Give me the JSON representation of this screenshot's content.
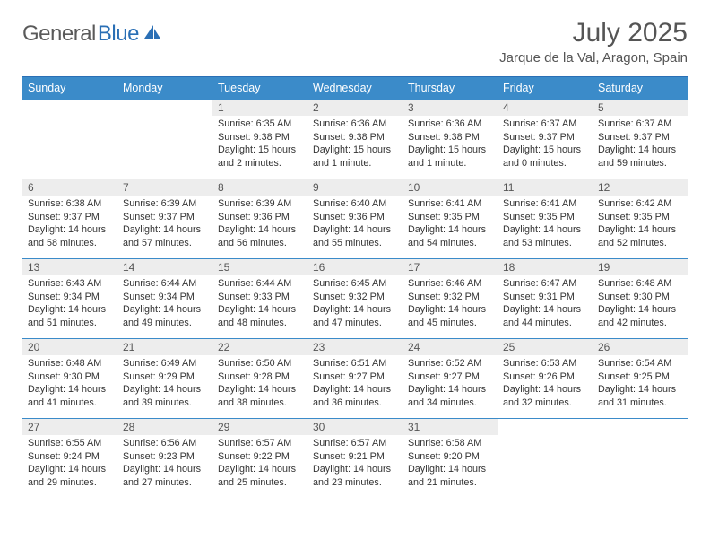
{
  "brand": {
    "part1": "General",
    "part2": "Blue"
  },
  "title": "July 2025",
  "location": "Jarque de la Val, Aragon, Spain",
  "weekdays": [
    "Sunday",
    "Monday",
    "Tuesday",
    "Wednesday",
    "Thursday",
    "Friday",
    "Saturday"
  ],
  "colors": {
    "header_bg": "#3b8bc9",
    "header_text": "#ffffff",
    "border": "#3b8bc9",
    "daynum_bg": "#ededed",
    "brand_gray": "#5a5a5a",
    "brand_blue": "#2a6fb5"
  },
  "weeks": [
    [
      null,
      null,
      {
        "n": "1",
        "sr": "Sunrise: 6:35 AM",
        "ss": "Sunset: 9:38 PM",
        "dl": "Daylight: 15 hours and 2 minutes."
      },
      {
        "n": "2",
        "sr": "Sunrise: 6:36 AM",
        "ss": "Sunset: 9:38 PM",
        "dl": "Daylight: 15 hours and 1 minute."
      },
      {
        "n": "3",
        "sr": "Sunrise: 6:36 AM",
        "ss": "Sunset: 9:38 PM",
        "dl": "Daylight: 15 hours and 1 minute."
      },
      {
        "n": "4",
        "sr": "Sunrise: 6:37 AM",
        "ss": "Sunset: 9:37 PM",
        "dl": "Daylight: 15 hours and 0 minutes."
      },
      {
        "n": "5",
        "sr": "Sunrise: 6:37 AM",
        "ss": "Sunset: 9:37 PM",
        "dl": "Daylight: 14 hours and 59 minutes."
      }
    ],
    [
      {
        "n": "6",
        "sr": "Sunrise: 6:38 AM",
        "ss": "Sunset: 9:37 PM",
        "dl": "Daylight: 14 hours and 58 minutes."
      },
      {
        "n": "7",
        "sr": "Sunrise: 6:39 AM",
        "ss": "Sunset: 9:37 PM",
        "dl": "Daylight: 14 hours and 57 minutes."
      },
      {
        "n": "8",
        "sr": "Sunrise: 6:39 AM",
        "ss": "Sunset: 9:36 PM",
        "dl": "Daylight: 14 hours and 56 minutes."
      },
      {
        "n": "9",
        "sr": "Sunrise: 6:40 AM",
        "ss": "Sunset: 9:36 PM",
        "dl": "Daylight: 14 hours and 55 minutes."
      },
      {
        "n": "10",
        "sr": "Sunrise: 6:41 AM",
        "ss": "Sunset: 9:35 PM",
        "dl": "Daylight: 14 hours and 54 minutes."
      },
      {
        "n": "11",
        "sr": "Sunrise: 6:41 AM",
        "ss": "Sunset: 9:35 PM",
        "dl": "Daylight: 14 hours and 53 minutes."
      },
      {
        "n": "12",
        "sr": "Sunrise: 6:42 AM",
        "ss": "Sunset: 9:35 PM",
        "dl": "Daylight: 14 hours and 52 minutes."
      }
    ],
    [
      {
        "n": "13",
        "sr": "Sunrise: 6:43 AM",
        "ss": "Sunset: 9:34 PM",
        "dl": "Daylight: 14 hours and 51 minutes."
      },
      {
        "n": "14",
        "sr": "Sunrise: 6:44 AM",
        "ss": "Sunset: 9:34 PM",
        "dl": "Daylight: 14 hours and 49 minutes."
      },
      {
        "n": "15",
        "sr": "Sunrise: 6:44 AM",
        "ss": "Sunset: 9:33 PM",
        "dl": "Daylight: 14 hours and 48 minutes."
      },
      {
        "n": "16",
        "sr": "Sunrise: 6:45 AM",
        "ss": "Sunset: 9:32 PM",
        "dl": "Daylight: 14 hours and 47 minutes."
      },
      {
        "n": "17",
        "sr": "Sunrise: 6:46 AM",
        "ss": "Sunset: 9:32 PM",
        "dl": "Daylight: 14 hours and 45 minutes."
      },
      {
        "n": "18",
        "sr": "Sunrise: 6:47 AM",
        "ss": "Sunset: 9:31 PM",
        "dl": "Daylight: 14 hours and 44 minutes."
      },
      {
        "n": "19",
        "sr": "Sunrise: 6:48 AM",
        "ss": "Sunset: 9:30 PM",
        "dl": "Daylight: 14 hours and 42 minutes."
      }
    ],
    [
      {
        "n": "20",
        "sr": "Sunrise: 6:48 AM",
        "ss": "Sunset: 9:30 PM",
        "dl": "Daylight: 14 hours and 41 minutes."
      },
      {
        "n": "21",
        "sr": "Sunrise: 6:49 AM",
        "ss": "Sunset: 9:29 PM",
        "dl": "Daylight: 14 hours and 39 minutes."
      },
      {
        "n": "22",
        "sr": "Sunrise: 6:50 AM",
        "ss": "Sunset: 9:28 PM",
        "dl": "Daylight: 14 hours and 38 minutes."
      },
      {
        "n": "23",
        "sr": "Sunrise: 6:51 AM",
        "ss": "Sunset: 9:27 PM",
        "dl": "Daylight: 14 hours and 36 minutes."
      },
      {
        "n": "24",
        "sr": "Sunrise: 6:52 AM",
        "ss": "Sunset: 9:27 PM",
        "dl": "Daylight: 14 hours and 34 minutes."
      },
      {
        "n": "25",
        "sr": "Sunrise: 6:53 AM",
        "ss": "Sunset: 9:26 PM",
        "dl": "Daylight: 14 hours and 32 minutes."
      },
      {
        "n": "26",
        "sr": "Sunrise: 6:54 AM",
        "ss": "Sunset: 9:25 PM",
        "dl": "Daylight: 14 hours and 31 minutes."
      }
    ],
    [
      {
        "n": "27",
        "sr": "Sunrise: 6:55 AM",
        "ss": "Sunset: 9:24 PM",
        "dl": "Daylight: 14 hours and 29 minutes."
      },
      {
        "n": "28",
        "sr": "Sunrise: 6:56 AM",
        "ss": "Sunset: 9:23 PM",
        "dl": "Daylight: 14 hours and 27 minutes."
      },
      {
        "n": "29",
        "sr": "Sunrise: 6:57 AM",
        "ss": "Sunset: 9:22 PM",
        "dl": "Daylight: 14 hours and 25 minutes."
      },
      {
        "n": "30",
        "sr": "Sunrise: 6:57 AM",
        "ss": "Sunset: 9:21 PM",
        "dl": "Daylight: 14 hours and 23 minutes."
      },
      {
        "n": "31",
        "sr": "Sunrise: 6:58 AM",
        "ss": "Sunset: 9:20 PM",
        "dl": "Daylight: 14 hours and 21 minutes."
      },
      null,
      null
    ]
  ]
}
